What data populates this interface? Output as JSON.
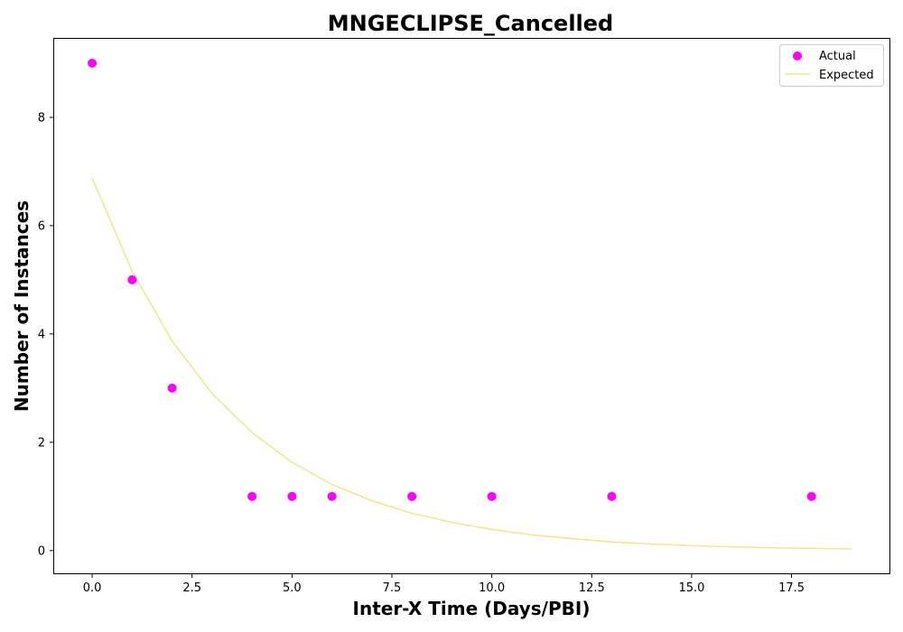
{
  "chart_data": {
    "type": "scatter",
    "title": "MNGECLIPSE_Cancelled",
    "xlabel": "Inter-X Time (Days/PBI)",
    "ylabel": "Number of Instances",
    "xlim": [
      -0.95,
      19.95
    ],
    "ylim": [
      -0.42,
      9.45
    ],
    "xticks": [
      0.0,
      2.5,
      5.0,
      7.5,
      10.0,
      12.5,
      15.0,
      17.5
    ],
    "xtick_labels": [
      "0.0",
      "2.5",
      "5.0",
      "7.5",
      "10.0",
      "12.5",
      "15.0",
      "17.5"
    ],
    "yticks": [
      0,
      2,
      4,
      6,
      8
    ],
    "ytick_labels": [
      "0",
      "2",
      "4",
      "6",
      "8"
    ],
    "grid": false,
    "legend_position": "top-right",
    "series": [
      {
        "name": "Actual",
        "kind": "scatter",
        "color": "#ff00ff",
        "x": [
          0,
          1,
          2,
          4,
          5,
          6,
          8,
          10,
          13,
          18
        ],
        "y": [
          9,
          5,
          3,
          1,
          1,
          1,
          1,
          1,
          1,
          1
        ]
      },
      {
        "name": "Expected",
        "kind": "line",
        "color": "#f0e68c",
        "x": [
          0,
          1,
          2,
          3,
          4,
          5,
          6,
          7,
          8,
          9,
          10,
          11,
          12,
          13,
          14,
          15,
          16,
          17,
          18,
          19
        ],
        "y": [
          6.88,
          5.16,
          3.87,
          2.9,
          2.18,
          1.63,
          1.22,
          0.92,
          0.69,
          0.52,
          0.39,
          0.29,
          0.22,
          0.16,
          0.12,
          0.09,
          0.07,
          0.05,
          0.04,
          0.03
        ]
      }
    ]
  }
}
